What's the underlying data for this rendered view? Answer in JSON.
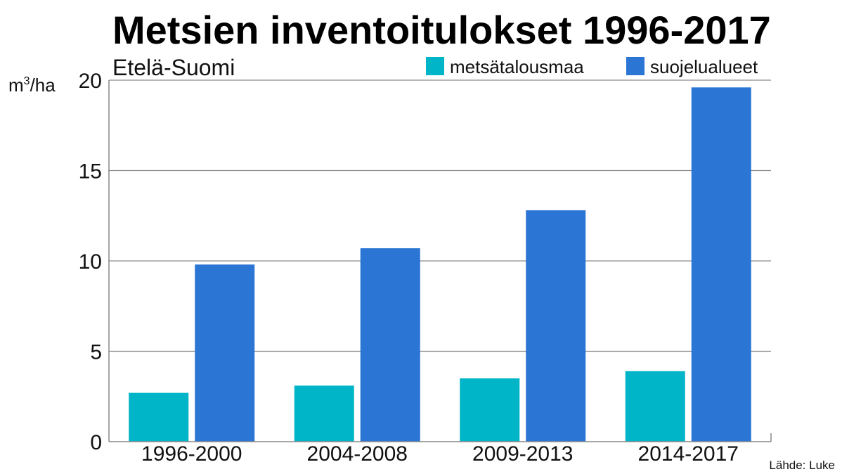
{
  "chart_data": {
    "type": "bar",
    "title": "Metsien inventoitulokset 1996-2017",
    "subtitle": "Etelä-Suomi",
    "ylabel_unit": "m",
    "ylabel_sup": "3",
    "ylabel_suffix": "/ha",
    "categories": [
      "1996-2000",
      "2004-2008",
      "2009-2013",
      "2014-2017"
    ],
    "series": [
      {
        "name": "metsätalousmaa",
        "color": "#00b5c7",
        "values": [
          2.7,
          3.1,
          3.5,
          3.9
        ]
      },
      {
        "name": "suojelualueet",
        "color": "#2b75d4",
        "values": [
          9.8,
          10.7,
          12.8,
          19.6
        ]
      }
    ],
    "ylim": [
      0,
      20
    ],
    "yticks": [
      0,
      5,
      10,
      15,
      20
    ],
    "grid": true,
    "legend_position": "top-right",
    "source": "Lähde: Luke"
  }
}
